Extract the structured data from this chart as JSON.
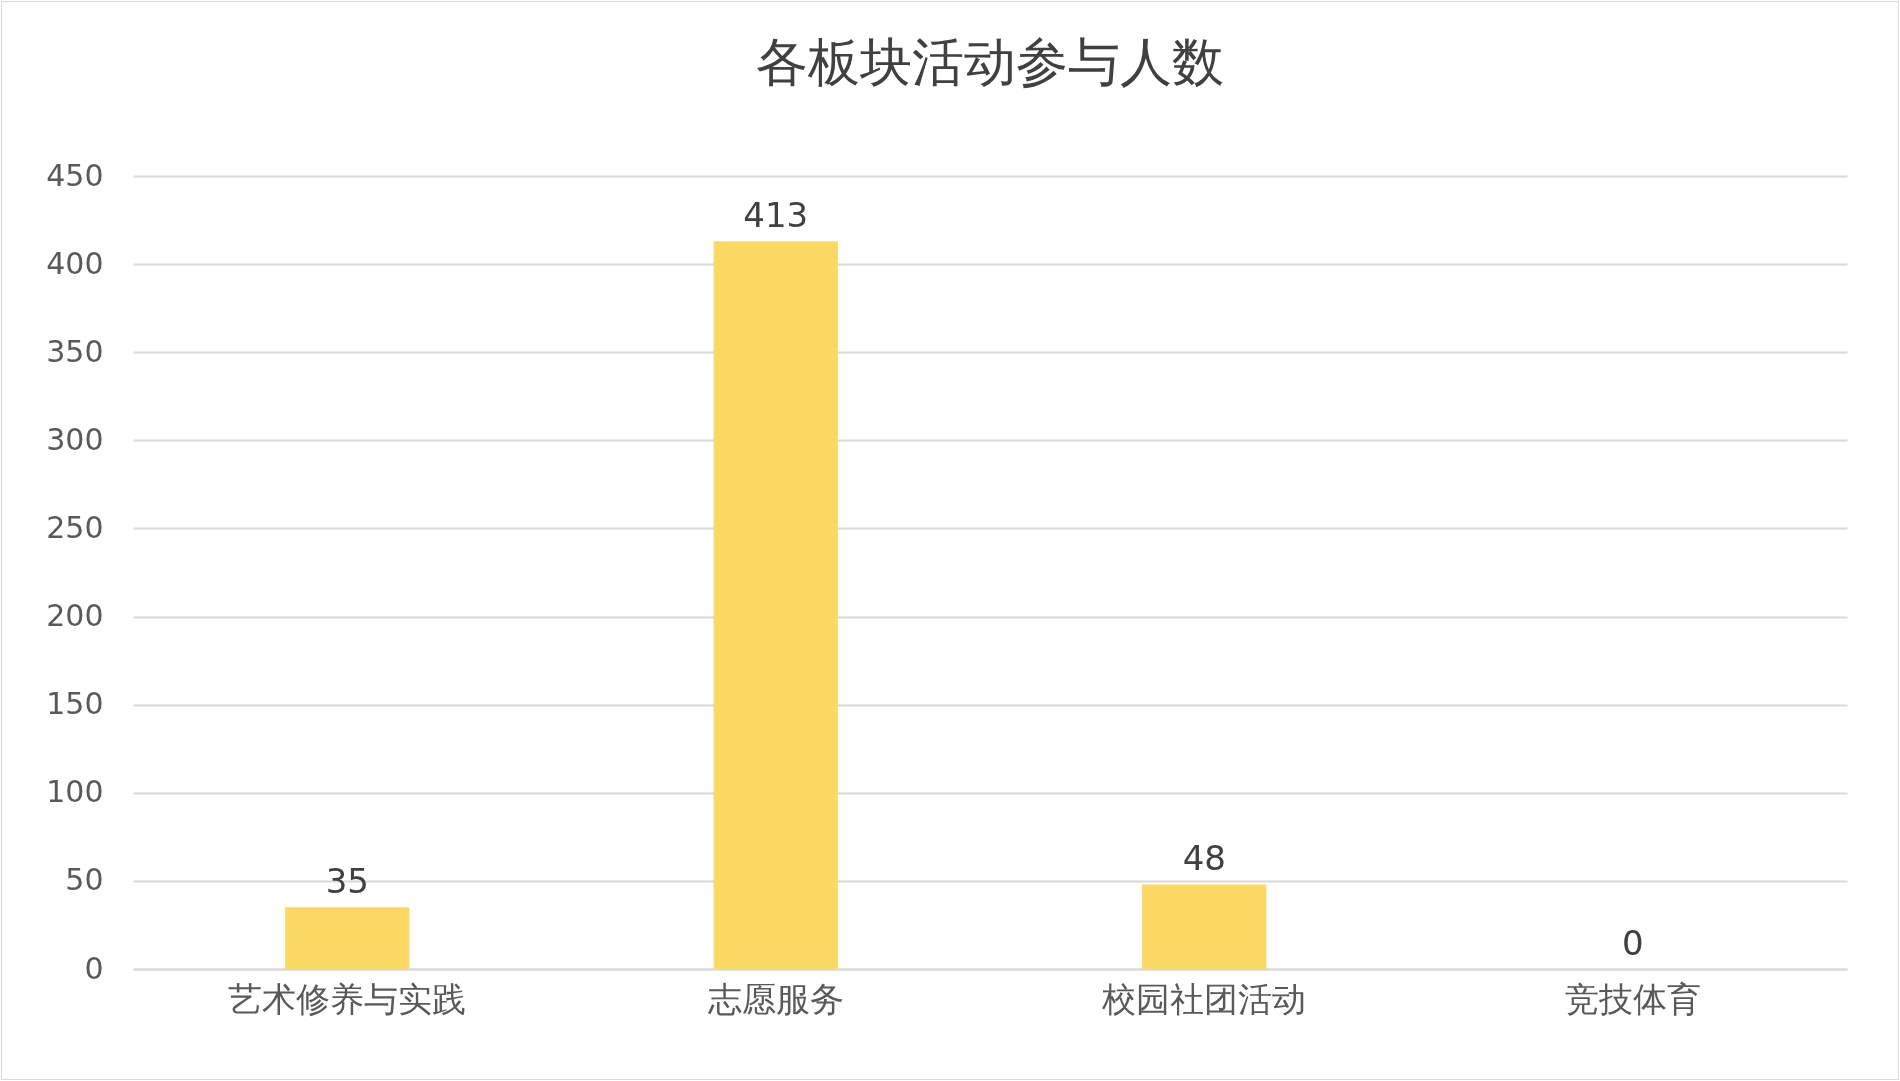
{
  "chart_data": {
    "type": "bar",
    "title": "各板块活动参与人数",
    "categories": [
      "艺术修养与实践",
      "志愿服务",
      "校园社团活动",
      "竞技体育"
    ],
    "values": [
      35,
      413,
      48,
      0
    ],
    "color": "#fcd864",
    "ylim": [
      0,
      450
    ],
    "yticks": [
      0,
      50,
      100,
      150,
      200,
      250,
      300,
      350,
      400,
      450
    ],
    "grid": "y",
    "data_labels": true
  }
}
